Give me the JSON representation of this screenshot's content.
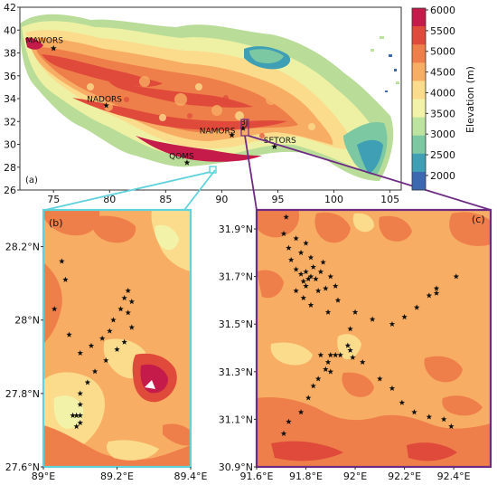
{
  "top_map": {
    "panel_label": "(a)",
    "x_ticks": [
      "75",
      "80",
      "85",
      "90",
      "95",
      "100",
      "105"
    ],
    "y_ticks": [
      "42",
      "40",
      "38",
      "36",
      "34",
      "32",
      "30",
      "28",
      "26"
    ],
    "stations": [
      {
        "name": "MAWORS",
        "lon": 75.0,
        "lat": 38.4
      },
      {
        "name": "NADORS",
        "lon": 79.7,
        "lat": 33.4
      },
      {
        "name": "NAMORS",
        "lon": 90.9,
        "lat": 30.8
      },
      {
        "name": "SETORS",
        "lon": 94.7,
        "lat": 29.8
      },
      {
        "name": "QOMS",
        "lon": 86.9,
        "lat": 28.4
      },
      {
        "name": "BJ",
        "lon": 91.9,
        "lat": 31.4
      }
    ],
    "colorbar": {
      "label": "Elevation (m)",
      "ticks": [
        "6000",
        "5500",
        "5000",
        "4500",
        "4000",
        "3500",
        "3000",
        "2500",
        "2000"
      ],
      "colors": [
        "#c51b4a",
        "#df4a3a",
        "#ef7f4a",
        "#f7ad63",
        "#fbdc8d",
        "#f2f3a8",
        "#bde3a0",
        "#7cc8a3",
        "#3f9fb5",
        "#3b68b0"
      ]
    }
  },
  "panel_b": {
    "panel_label": "(b)",
    "x_ticks": [
      "89°E",
      "89.2°E",
      "89.4°E"
    ],
    "y_ticks": [
      "28.2°N",
      "28°N",
      "27.8°N",
      "27.6°N"
    ],
    "stars": [
      [
        89.05,
        28.16
      ],
      [
        89.06,
        28.11
      ],
      [
        89.03,
        28.03
      ],
      [
        89.07,
        27.96
      ],
      [
        89.1,
        27.91
      ],
      [
        89.13,
        27.93
      ],
      [
        89.16,
        27.95
      ],
      [
        89.18,
        27.97
      ],
      [
        89.19,
        28.0
      ],
      [
        89.21,
        28.03
      ],
      [
        89.22,
        28.06
      ],
      [
        89.23,
        28.08
      ],
      [
        89.24,
        28.05
      ],
      [
        89.23,
        28.02
      ],
      [
        89.24,
        27.98
      ],
      [
        89.22,
        27.94
      ],
      [
        89.2,
        27.92
      ],
      [
        89.17,
        27.89
      ],
      [
        89.14,
        27.86
      ],
      [
        89.12,
        27.83
      ],
      [
        89.1,
        27.8
      ],
      [
        89.1,
        27.77
      ],
      [
        89.09,
        27.74
      ],
      [
        89.1,
        27.72
      ],
      [
        89.08,
        27.74
      ],
      [
        89.1,
        27.74
      ],
      [
        89.09,
        27.71
      ]
    ]
  },
  "panel_c": {
    "panel_label": "(c)",
    "x_ticks": [
      "91.6°E",
      "91.8°E",
      "92°E",
      "92.2°E",
      "92.4°E"
    ],
    "y_ticks": [
      "31.9°N",
      "31.7°N",
      "31.5°N",
      "31.3°N",
      "31.1°N",
      "30.9°N"
    ],
    "stars": [
      [
        91.72,
        31.95
      ],
      [
        91.71,
        31.88
      ],
      [
        91.73,
        31.82
      ],
      [
        91.76,
        31.86
      ],
      [
        91.78,
        31.8
      ],
      [
        91.8,
        31.84
      ],
      [
        91.82,
        31.78
      ],
      [
        91.74,
        31.77
      ],
      [
        91.76,
        31.73
      ],
      [
        91.78,
        31.71
      ],
      [
        91.79,
        31.68
      ],
      [
        91.8,
        31.72
      ],
      [
        91.81,
        31.69
      ],
      [
        91.82,
        31.7
      ],
      [
        91.8,
        31.66
      ],
      [
        91.83,
        31.74
      ],
      [
        91.84,
        31.69
      ],
      [
        91.86,
        31.72
      ],
      [
        91.87,
        31.76
      ],
      [
        91.85,
        31.64
      ],
      [
        91.88,
        31.65
      ],
      [
        91.9,
        31.7
      ],
      [
        91.92,
        31.66
      ],
      [
        91.93,
        31.6
      ],
      [
        91.79,
        31.61
      ],
      [
        91.76,
        31.64
      ],
      [
        91.82,
        31.58
      ],
      [
        91.89,
        31.55
      ],
      [
        92.0,
        31.55
      ],
      [
        91.98,
        31.48
      ],
      [
        92.07,
        31.52
      ],
      [
        92.15,
        31.5
      ],
      [
        92.2,
        31.53
      ],
      [
        92.25,
        31.57
      ],
      [
        92.3,
        31.62
      ],
      [
        92.33,
        31.65
      ],
      [
        92.41,
        31.7
      ],
      [
        92.33,
        31.63
      ],
      [
        91.97,
        31.41
      ],
      [
        91.98,
        31.39
      ],
      [
        91.94,
        31.37
      ],
      [
        91.92,
        31.37
      ],
      [
        91.9,
        31.37
      ],
      [
        91.89,
        31.34
      ],
      [
        91.88,
        31.31
      ],
      [
        91.85,
        31.27
      ],
      [
        91.83,
        31.24
      ],
      [
        91.81,
        31.19
      ],
      [
        91.78,
        31.13
      ],
      [
        91.73,
        31.09
      ],
      [
        91.71,
        31.04
      ],
      [
        91.86,
        31.37
      ],
      [
        91.9,
        31.3
      ],
      [
        92.03,
        31.34
      ],
      [
        92.1,
        31.27
      ],
      [
        92.15,
        31.23
      ],
      [
        92.19,
        31.17
      ],
      [
        92.24,
        31.13
      ],
      [
        92.3,
        31.11
      ],
      [
        92.36,
        31.1
      ],
      [
        92.39,
        31.07
      ],
      [
        91.99,
        31.36
      ]
    ]
  }
}
